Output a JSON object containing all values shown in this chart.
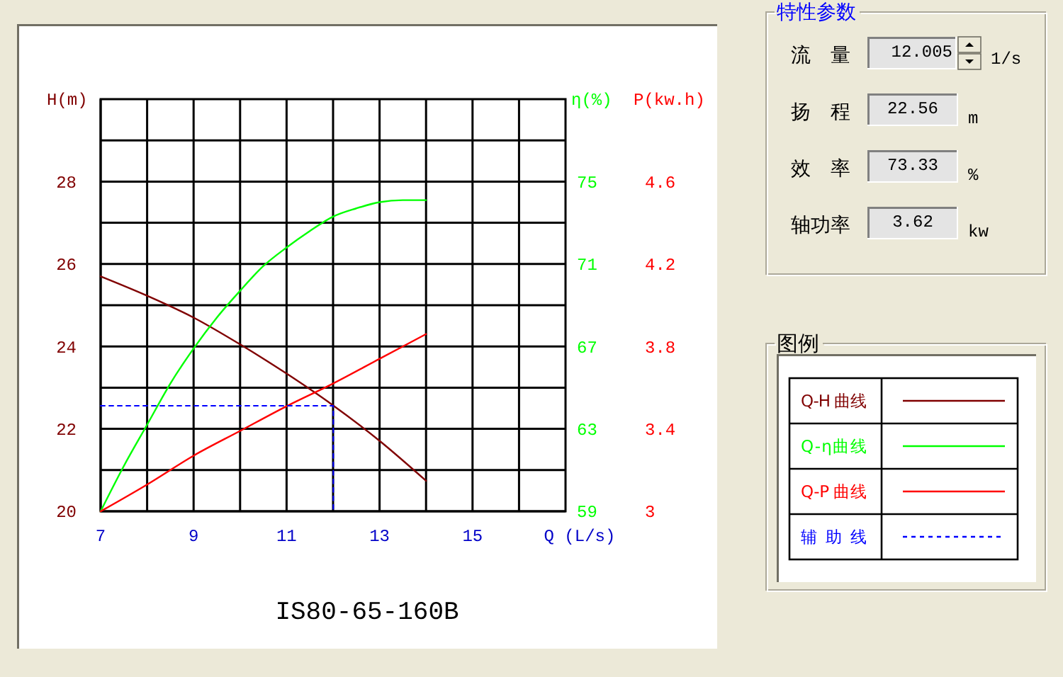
{
  "chart_data": [
    {
      "type": "line",
      "title": "IS80-65-160B",
      "xlabel": "Q (L/s)",
      "ylabel": "H(m)",
      "y2label": "η(%)",
      "y3label": "P(kw.h)",
      "legend_title": "图例",
      "xlim": [
        7,
        17
      ],
      "xticks": [
        7,
        {
          "value": 8,
          "label": null
        },
        9,
        {
          "value": 10,
          "label": null
        },
        11,
        {
          "value": 12,
          "label": null
        },
        13,
        {
          "value": 14,
          "label": null
        },
        15,
        {
          "value": 16,
          "label": null
        }
      ],
      "ylim": [
        20,
        30
      ],
      "yticks": [
        20,
        {
          "value": 21,
          "label": null
        },
        22,
        {
          "value": 23,
          "label": null
        },
        24,
        {
          "value": 25,
          "label": null
        },
        26,
        {
          "value": 27,
          "label": null
        },
        28,
        {
          "value": 29,
          "label": null
        }
      ],
      "y2lim": [
        59,
        79
      ],
      "y2ticks": [
        59,
        63,
        67,
        71,
        75
      ],
      "y3lim": [
        3,
        5
      ],
      "y3ticks": [
        3,
        3.4,
        3.8,
        4.2,
        4.6
      ],
      "grid": true,
      "legend": "right",
      "series": [
        {
          "name": "Q-H 曲线",
          "color": "#800000",
          "axis": "y",
          "x": [
            7,
            8,
            9,
            10,
            11,
            12,
            13,
            14
          ],
          "values": [
            25.7,
            25.23,
            24.7,
            24.05,
            23.34,
            22.57,
            21.71,
            20.74
          ]
        },
        {
          "name": "Q-η曲线",
          "color": "#00ff00",
          "axis": "y2",
          "x": [
            7,
            7.5,
            8,
            8.5,
            9,
            9.5,
            10,
            10.5,
            11,
            11.5,
            12,
            12.5,
            13,
            13.5,
            14
          ],
          "values": [
            59,
            61.2,
            63.2,
            65.2,
            66.9,
            68.4,
            69.7,
            70.9,
            71.8,
            72.6,
            73.3,
            73.7,
            74.0,
            74.1,
            74.1
          ]
        },
        {
          "name": "Q-P 曲线",
          "color": "#ff0000",
          "axis": "y3",
          "x": [
            7,
            8,
            9,
            10,
            11,
            12,
            13,
            14
          ],
          "values": [
            3.0,
            3.13,
            3.27,
            3.39,
            3.51,
            3.62,
            3.74,
            3.86
          ]
        },
        {
          "name": "辅 助 线",
          "color": "#0000ff",
          "axis": "y",
          "line_style": "dashed",
          "x": [
            7,
            12.005,
            12.005
          ],
          "values": [
            22.56,
            22.56,
            20
          ]
        }
      ]
    },
    {
      "type": "other",
      "title": "特性参数",
      "annotations": [
        "流 量",
        "12.005",
        "1/s",
        "扬 程",
        "22.56",
        "m",
        "效 率",
        "73.33",
        "%",
        "轴功率",
        "3.62",
        "kw"
      ]
    }
  ]
}
